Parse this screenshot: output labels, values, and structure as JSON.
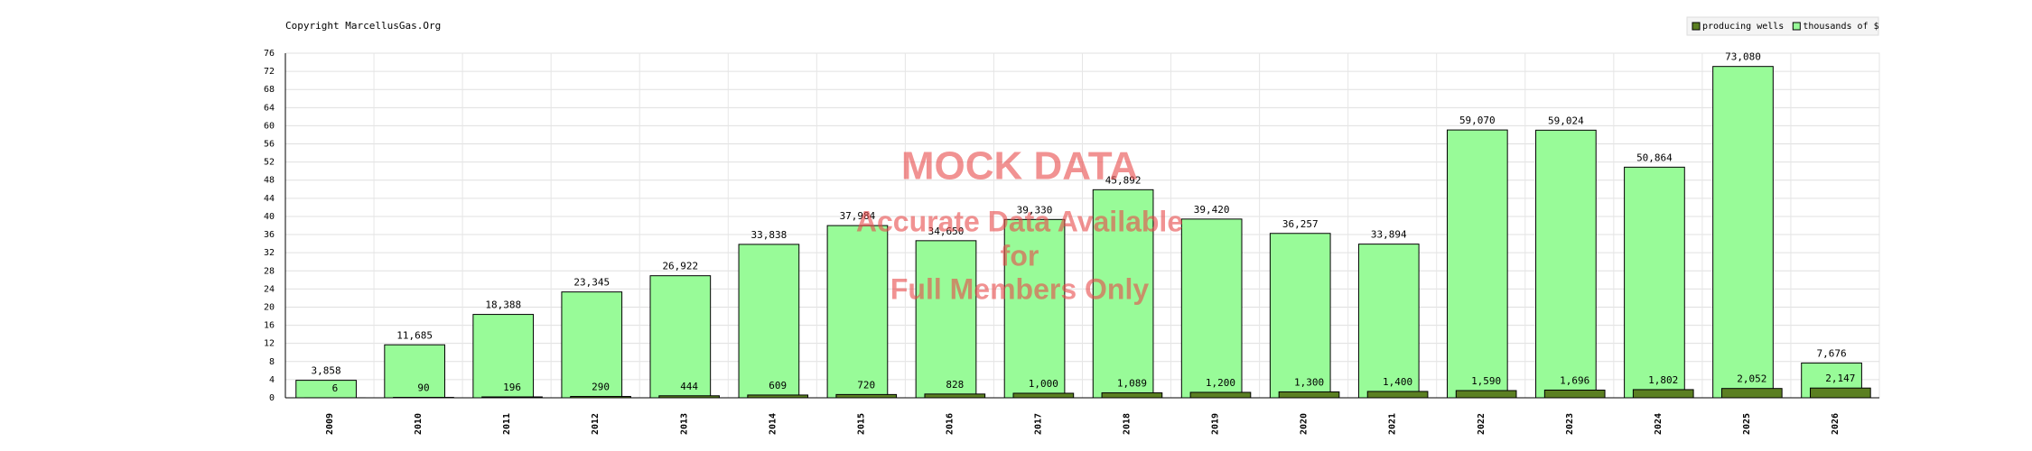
{
  "chart_data": {
    "type": "bar",
    "copyright": "Copyright MarcellusGas.Org",
    "watermark": [
      "MOCK DATA",
      "Accurate Data Available",
      "for",
      "Full Members Only"
    ],
    "categories": [
      "2009",
      "2010",
      "2011",
      "2012",
      "2013",
      "2014",
      "2015",
      "2016",
      "2017",
      "2018",
      "2019",
      "2020",
      "2021",
      "2022",
      "2023",
      "2024",
      "2025",
      "2026"
    ],
    "series": [
      {
        "name": "thousands of $",
        "color": "#98fb98",
        "values": [
          3.858,
          11.685,
          18.388,
          23.345,
          26.922,
          33.838,
          37.984,
          34.65,
          39.33,
          45.892,
          39.42,
          36.257,
          33.894,
          59.07,
          59.024,
          50.864,
          73.08,
          7.676
        ],
        "value_labels": [
          "3,858",
          "11,685",
          "18,388",
          "23,345",
          "26,922",
          "33,838",
          "37,984",
          "34,650",
          "39,330",
          "45,892",
          "39,420",
          "36,257",
          "33,894",
          "59,070",
          "59,024",
          "50,864",
          "73,080",
          "7,676"
        ]
      },
      {
        "name": "producing wells",
        "color": "#5b7f22",
        "values": [
          0.006,
          0.09,
          0.196,
          0.29,
          0.444,
          0.609,
          0.72,
          0.828,
          1.0,
          1.089,
          1.2,
          1.3,
          1.4,
          1.59,
          1.696,
          1.802,
          2.052,
          2.147
        ],
        "value_labels": [
          "6",
          "90",
          "196",
          "290",
          "444",
          "609",
          "720",
          "828",
          "1,000",
          "1,089",
          "1,200",
          "1,300",
          "1,400",
          "1,590",
          "1,696",
          "1,802",
          "2,052",
          "2,147"
        ]
      }
    ],
    "ylim": [
      0,
      76
    ],
    "yticks": [
      0,
      4,
      8,
      12,
      16,
      20,
      24,
      28,
      32,
      36,
      40,
      44,
      48,
      52,
      56,
      60,
      64,
      68,
      72,
      76
    ],
    "grid": true
  }
}
